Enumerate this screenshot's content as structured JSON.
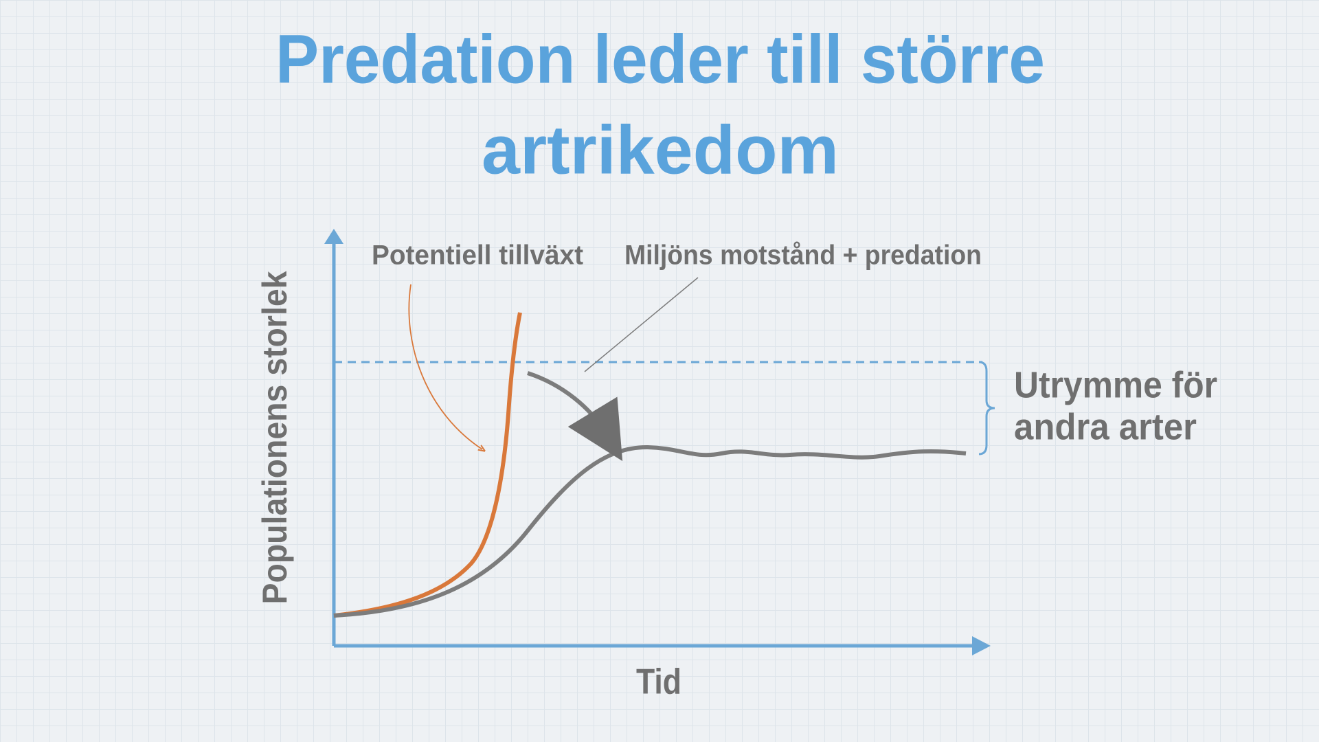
{
  "title": [
    "Predation leder till större",
    "artrikedom"
  ],
  "diagram": {
    "y_axis_label": "Populationens storlek",
    "x_axis_label": "Tid",
    "annotations": [
      "Potentiell tillväxt",
      "Miljöns motstånd + predation"
    ],
    "bracket_label": [
      "Utrymme för",
      "andra arter"
    ]
  }
}
